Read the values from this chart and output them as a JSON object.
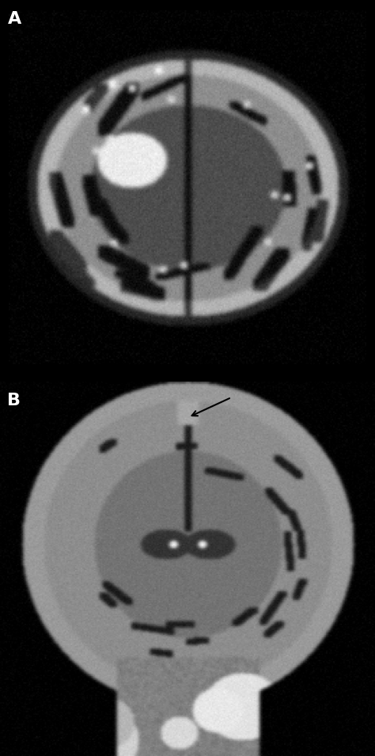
{
  "background_color": "#000000",
  "panel_A_label": "A",
  "panel_B_label": "B",
  "label_color": "#ffffff",
  "label_fontsize": 16,
  "label_fontweight": "bold",
  "divider_color": "#ffffff",
  "divider_linewidth": 2,
  "arrow_color": "#000000",
  "fig_width": 4.74,
  "fig_height": 9.55,
  "dpi": 100
}
